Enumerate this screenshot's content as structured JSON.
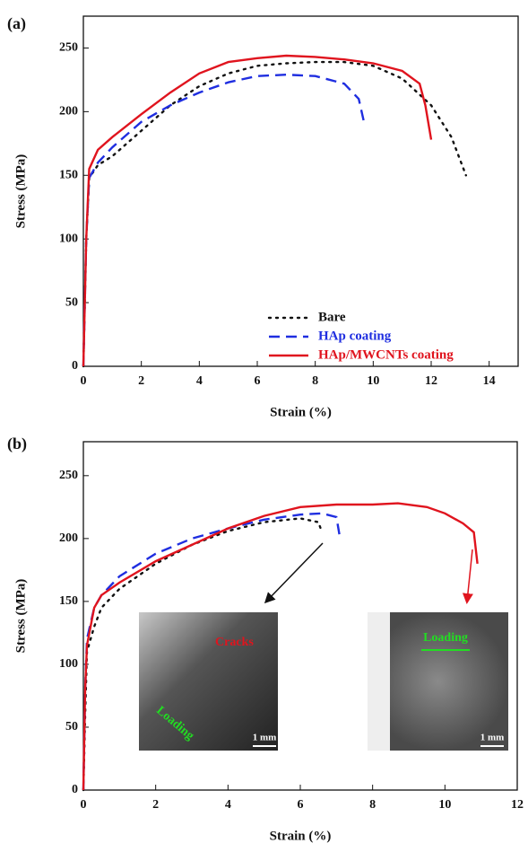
{
  "chart_data": [
    {
      "type": "line",
      "panel_label": "(a)",
      "xlabel": "Strain (%)",
      "ylabel": "Stress (MPa)",
      "xlim": [
        0,
        15
      ],
      "ylim": [
        0,
        275
      ],
      "xticks": [
        0,
        2,
        4,
        6,
        8,
        10,
        12,
        14
      ],
      "yticks": [
        0,
        50,
        100,
        150,
        200,
        250
      ],
      "legend": "lower right",
      "series": [
        {
          "name": "Bare",
          "color": "#111111",
          "dash": "dotted",
          "x": [
            0,
            0.1,
            0.2,
            0.5,
            1,
            2,
            3,
            4,
            5,
            6,
            7,
            8,
            9,
            10,
            11,
            12,
            12.7,
            13.2
          ],
          "values": [
            0,
            100,
            148,
            158,
            165,
            185,
            205,
            220,
            230,
            236,
            238,
            239,
            239,
            236,
            226,
            205,
            180,
            150
          ]
        },
        {
          "name": "HAp coating",
          "color": "#1f2ee0",
          "dash": "dashed",
          "x": [
            0,
            0.1,
            0.2,
            0.5,
            1,
            2,
            3,
            4,
            5,
            6,
            7,
            8,
            9,
            9.5,
            9.7
          ],
          "values": [
            0,
            100,
            148,
            160,
            172,
            192,
            205,
            215,
            223,
            228,
            229,
            228,
            222,
            210,
            190
          ]
        },
        {
          "name": "HAp/MWCNTs coating",
          "color": "#e0141e",
          "dash": "solid",
          "x": [
            0,
            0.1,
            0.2,
            0.5,
            1,
            2,
            3,
            4,
            5,
            6,
            7,
            8,
            9,
            10,
            11,
            11.6,
            11.8,
            12
          ],
          "values": [
            0,
            100,
            155,
            170,
            180,
            198,
            215,
            230,
            239,
            242,
            244,
            243,
            241,
            238,
            232,
            222,
            205,
            178
          ]
        }
      ]
    },
    {
      "type": "line",
      "panel_label": "(b)",
      "xlabel": "Strain (%)",
      "ylabel": "Stress (MPa)",
      "xlim": [
        0,
        12
      ],
      "ylim": [
        0,
        277
      ],
      "xticks": [
        0,
        2,
        4,
        6,
        8,
        10,
        12
      ],
      "yticks": [
        0,
        50,
        100,
        150,
        200,
        250
      ],
      "annotations": [
        "Cracks",
        "Loading",
        "1 mm",
        "Loading",
        "1 mm"
      ],
      "series": [
        {
          "color": "#111111",
          "dash": "dotted",
          "x": [
            0,
            0.05,
            0.1,
            0.3,
            0.5,
            1,
            2,
            3,
            4,
            5,
            6,
            6.5,
            6.6
          ],
          "values": [
            0,
            60,
            110,
            130,
            145,
            160,
            180,
            195,
            206,
            213,
            216,
            213,
            205
          ]
        },
        {
          "color": "#1f2ee0",
          "dash": "dashed",
          "x": [
            0,
            0.05,
            0.1,
            0.3,
            0.5,
            1,
            2,
            3,
            4,
            5,
            6,
            6.6,
            7,
            7.1
          ],
          "values": [
            0,
            80,
            120,
            145,
            155,
            170,
            188,
            200,
            208,
            215,
            219,
            220,
            217,
            200
          ]
        },
        {
          "color": "#e0141e",
          "dash": "solid",
          "x": [
            0,
            0.05,
            0.1,
            0.3,
            0.5,
            1,
            2,
            3,
            4,
            5,
            6,
            7,
            8,
            8.7,
            9.5,
            10,
            10.5,
            10.8,
            10.9
          ],
          "values": [
            0,
            80,
            115,
            145,
            155,
            165,
            182,
            195,
            208,
            218,
            225,
            227,
            227,
            228,
            225,
            220,
            212,
            205,
            180
          ]
        }
      ]
    }
  ]
}
